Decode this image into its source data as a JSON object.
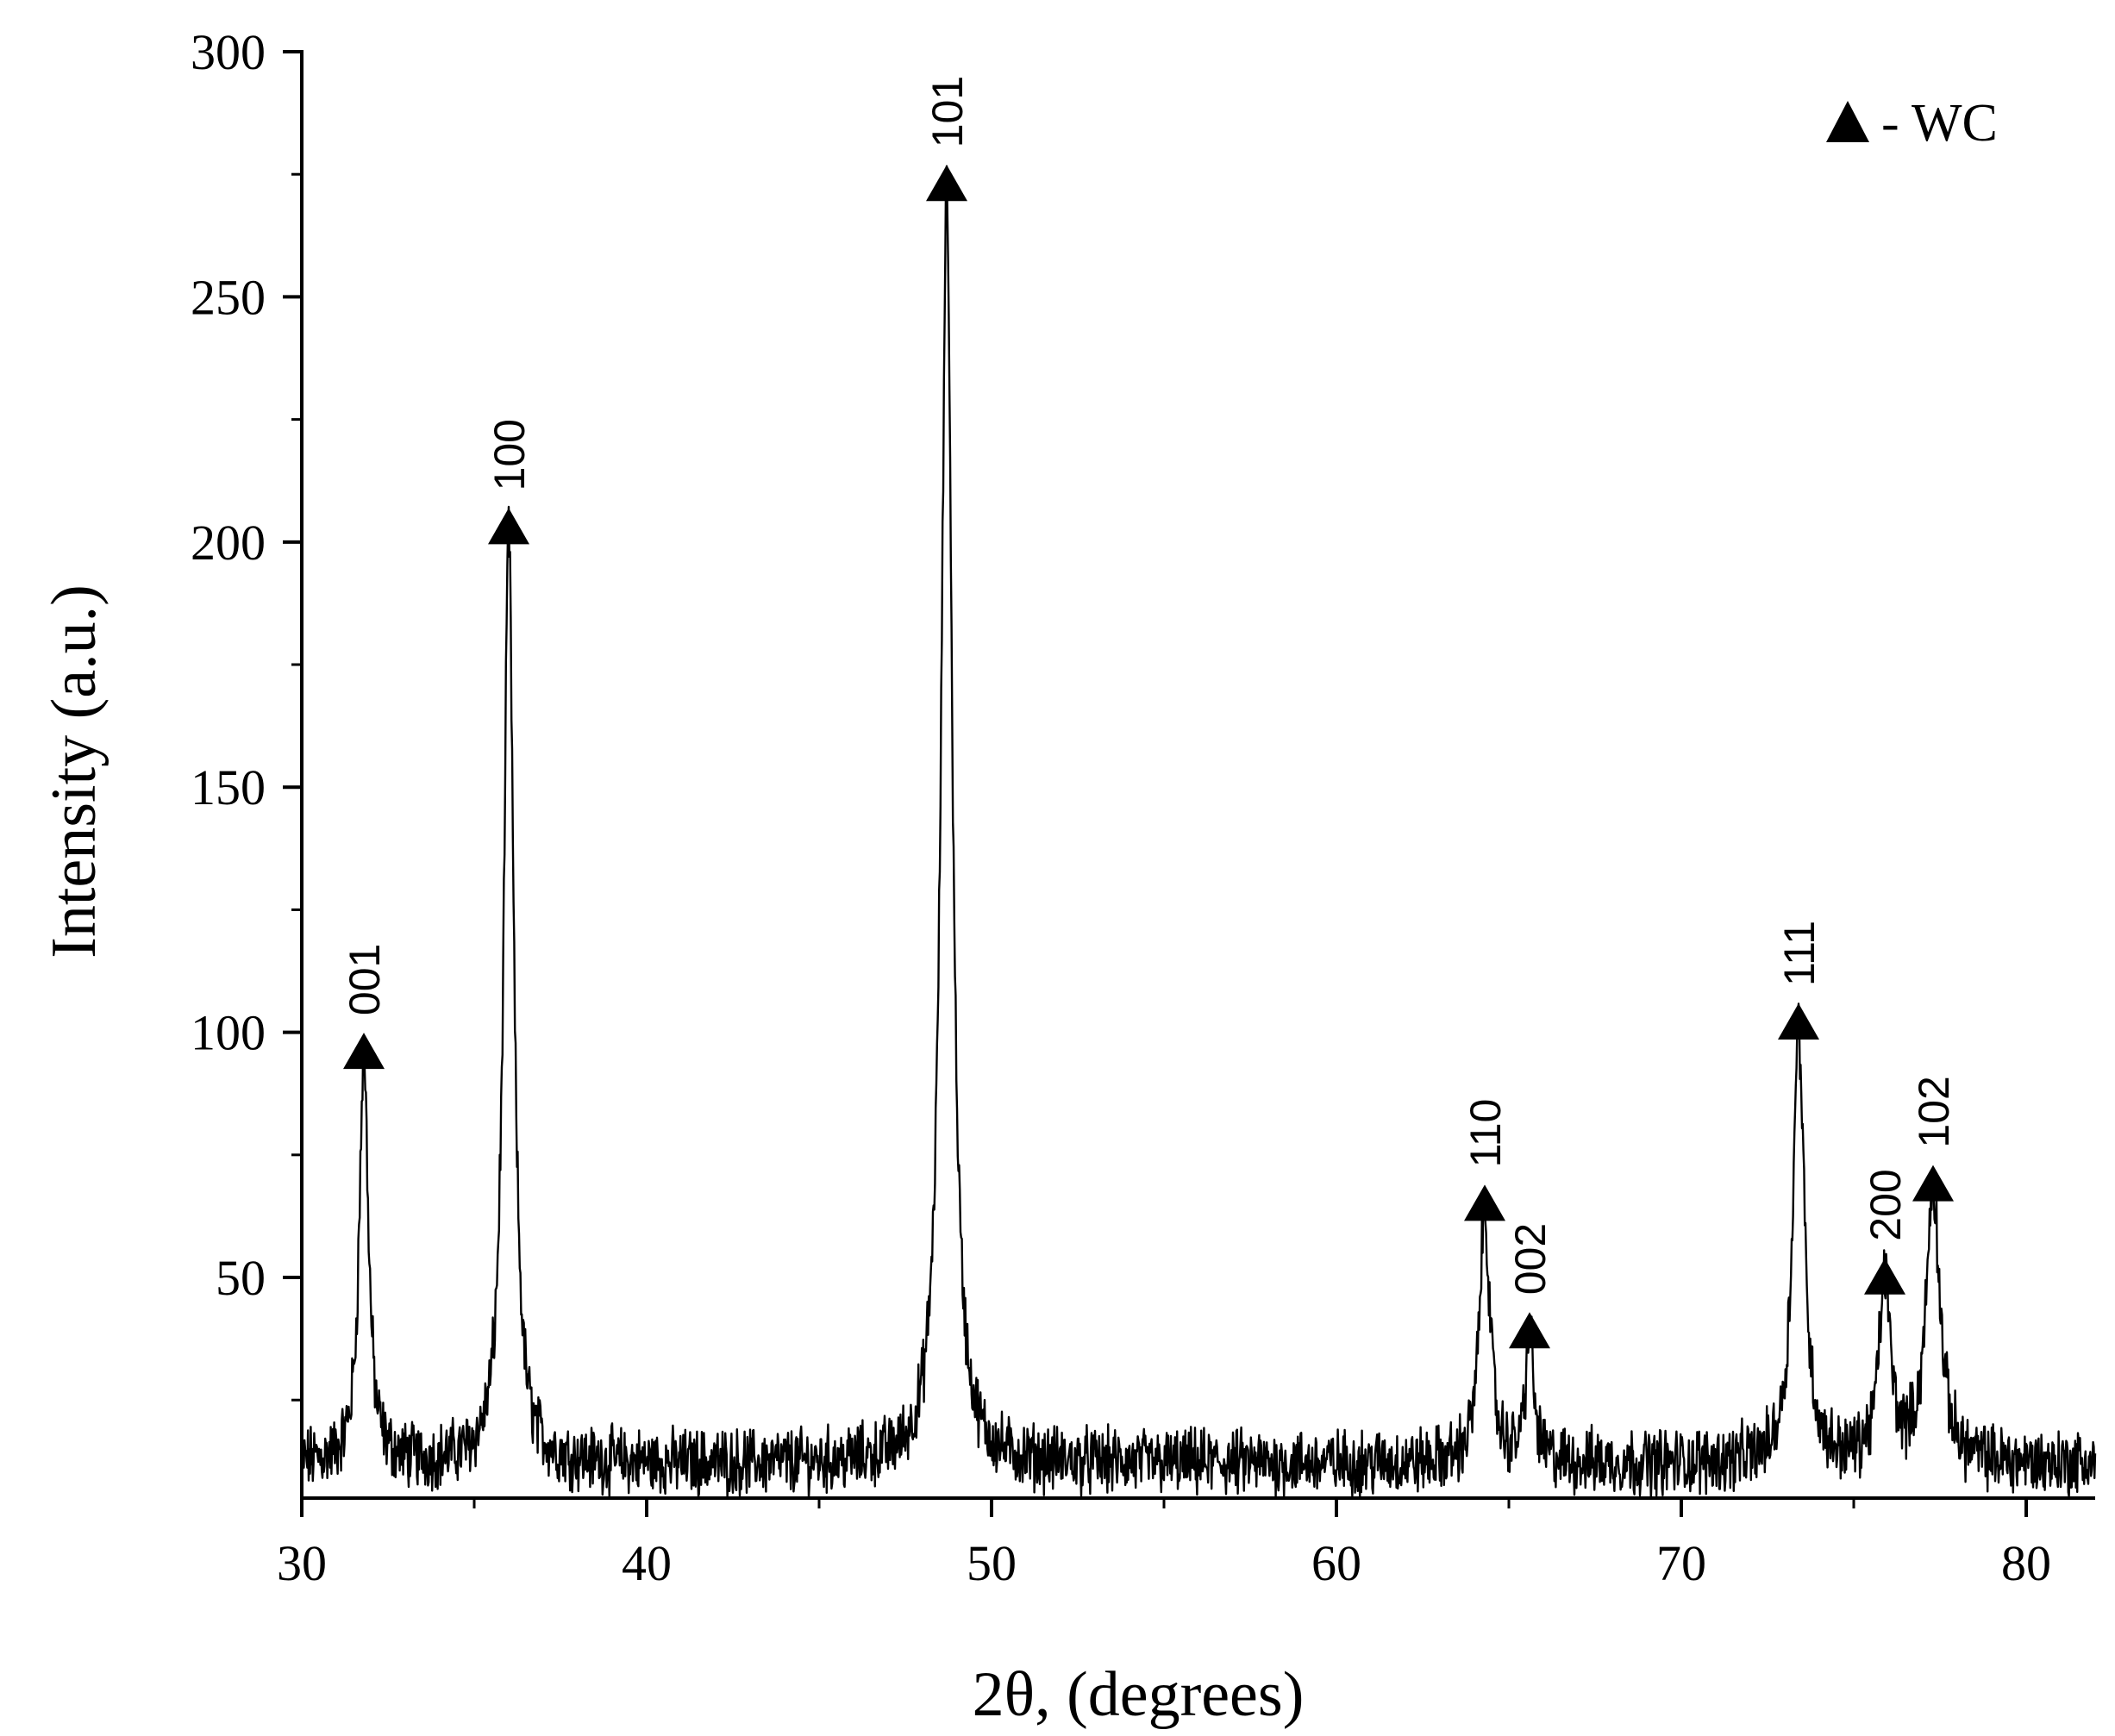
{
  "chart_data": {
    "type": "line",
    "title": "",
    "xlabel": "2θ, (degrees)",
    "ylabel": "Intensity (a.u.)",
    "xlim": [
      30,
      82
    ],
    "ylim": [
      5,
      300
    ],
    "x_ticks": [
      30,
      40,
      50,
      60,
      70,
      80
    ],
    "y_ticks": [
      50,
      100,
      150,
      200,
      250,
      300
    ],
    "x_tick_labels": [
      "30",
      "40",
      "50",
      "60",
      "70",
      "80"
    ],
    "y_tick_labels": [
      "50",
      "100",
      "150",
      "200",
      "250",
      "300"
    ],
    "grid": false,
    "legend": {
      "position": "top-right",
      "marker": "filled-triangle",
      "label": "- WC"
    },
    "baseline": 12,
    "peaks": [
      {
        "x": 31.8,
        "y": 95,
        "hkl": "001"
      },
      {
        "x": 36.0,
        "y": 202,
        "hkl": "100"
      },
      {
        "x": 48.7,
        "y": 272,
        "hkl": "101"
      },
      {
        "x": 64.3,
        "y": 64,
        "hkl": "110"
      },
      {
        "x": 65.6,
        "y": 38,
        "hkl": "002"
      },
      {
        "x": 73.4,
        "y": 101,
        "hkl": "111"
      },
      {
        "x": 75.9,
        "y": 49,
        "hkl": "200"
      },
      {
        "x": 77.3,
        "y": 68,
        "hkl": "102"
      }
    ]
  }
}
